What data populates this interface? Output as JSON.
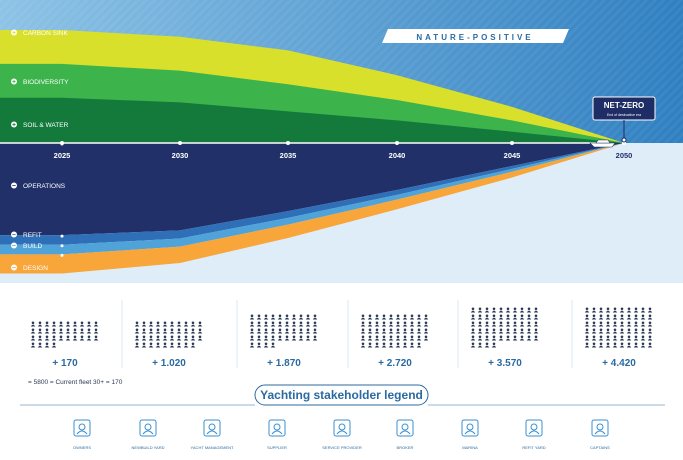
{
  "chart_data": {
    "type": "area",
    "x": [
      2025,
      2030,
      2035,
      2040,
      2045,
      2050
    ],
    "x_tick_labels": [
      "2025",
      "2030",
      "2035",
      "2040",
      "2045",
      "2050"
    ],
    "banner": "NATURE-POSITIVE",
    "marker_title": "NET-ZERO",
    "marker_subtitle": "End of destructive era",
    "marker_year": 2050,
    "upper_series": [
      {
        "name": "CARBON SINK",
        "color": "#d9e02c",
        "values": [
          5,
          4.7,
          4.1,
          3.0,
          1.6,
          0
        ]
      },
      {
        "name": "BIODIVERSITY",
        "color": "#3cb44b",
        "values": [
          3.5,
          3.2,
          2.6,
          1.9,
          1.0,
          0
        ]
      },
      {
        "name": "SOIL & WATER",
        "color": "#137a3c",
        "values": [
          2,
          1.8,
          1.4,
          1.0,
          0.5,
          0
        ]
      }
    ],
    "lower_series": [
      {
        "name": "OPERATIONS",
        "color": "#22306a",
        "values": [
          9.6,
          9.1,
          7.1,
          4.9,
          2.4,
          0
        ]
      },
      {
        "name": "REFIT",
        "color": "#2e6fb8",
        "values": [
          1.0,
          0.85,
          0.7,
          0.5,
          0.3,
          0
        ]
      },
      {
        "name": "BUILD",
        "color": "#4fa3d8",
        "values": [
          1.0,
          0.85,
          0.7,
          0.5,
          0.3,
          0
        ]
      },
      {
        "name": "DESIGN",
        "color": "#f8a53a",
        "values": [
          2.0,
          1.7,
          1.4,
          1.0,
          0.6,
          0
        ]
      }
    ]
  },
  "fleet_growth": {
    "items": [
      {
        "label": "+ 170",
        "icon_count": 34
      },
      {
        "label": "+ 1.020",
        "icon_count": 39
      },
      {
        "label": "+ 1.870",
        "icon_count": 44
      },
      {
        "label": "+ 2.720",
        "icon_count": 49
      },
      {
        "label": "+ 3.570",
        "icon_count": 54
      },
      {
        "label": "+ 4.420",
        "icon_count": 60
      }
    ],
    "legend_note": "= 5800 = Current fleet 30+   = 170"
  },
  "stakeholder_legend": {
    "title": "Yachting stakeholder legend",
    "items": [
      {
        "label": "OWNERS",
        "icon": "owner-icon"
      },
      {
        "label": "NEWBUILD YARD",
        "icon": "crane-icon"
      },
      {
        "label": "YACHT MANAGEMENT",
        "icon": "clipboard-icon"
      },
      {
        "label": "SUPPLIER",
        "icon": "supplier-icon"
      },
      {
        "label": "SERVICE PROVIDER",
        "icon": "service-icon"
      },
      {
        "label": "BROKER",
        "icon": "broker-icon"
      },
      {
        "label": "MARINA",
        "icon": "marina-icon"
      },
      {
        "label": "REFIT YARD",
        "icon": "refit-yard-icon"
      },
      {
        "label": "CAPTAINS",
        "icon": "captain-icon"
      }
    ]
  },
  "colors": {
    "sky_dark": "#2f7fc1",
    "sky_light": "#8dc3e6",
    "lower_bg": "#deedf7",
    "icon_dark": "#2b3a55",
    "icon_light": "#8fc7e8",
    "accent": "#2a6aa0"
  }
}
